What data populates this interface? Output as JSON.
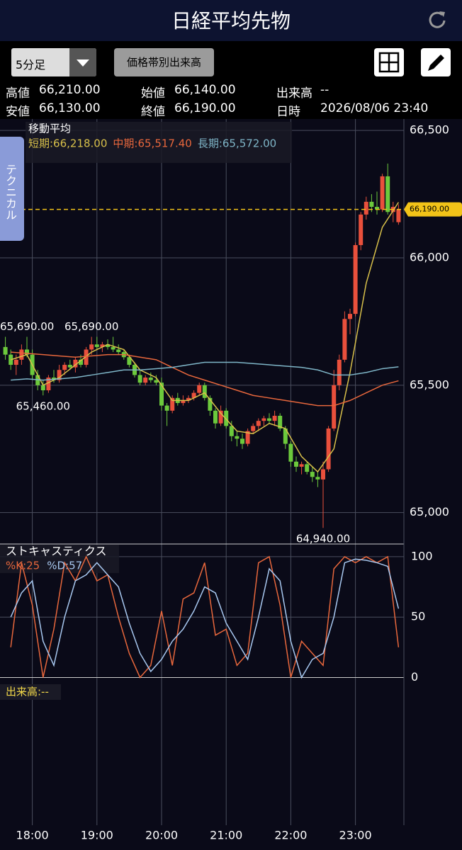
{
  "header": {
    "title": "日経平均先物"
  },
  "toolbar": {
    "interval": "5分足",
    "volume_profile": "価格帯別出来高"
  },
  "info": [
    [
      "高値",
      "66,210.00"
    ],
    [
      "始値",
      "66,140.00"
    ],
    [
      "出来高",
      "--"
    ],
    [
      "安値",
      "66,130.00"
    ],
    [
      "終値",
      "66,190.00"
    ],
    [
      "日時",
      "2026/08/06 23:40"
    ]
  ],
  "side_tab": "テクニカル",
  "chart_data": [
    {
      "type": "candlestick",
      "title": "移動平均",
      "up_color": "#e9503c",
      "down_color": "#6cc93c",
      "xlim": [
        "17:30",
        "23:45"
      ],
      "xticks": [
        "18:00",
        "19:00",
        "20:00",
        "21:00",
        "22:00",
        "23:00"
      ],
      "ylim": [
        64885,
        66545
      ],
      "yticks": [
        {
          "value": 65000,
          "label": "65,000"
        },
        {
          "value": 65500,
          "label": "65,500"
        },
        {
          "value": 66000,
          "label": "66,000"
        },
        {
          "value": 66500,
          "label": "66,500"
        }
      ],
      "grid": true,
      "x": [
        "17:35",
        "17:40",
        "17:45",
        "17:50",
        "17:55",
        "18:00",
        "18:05",
        "18:10",
        "18:15",
        "18:20",
        "18:25",
        "18:30",
        "18:35",
        "18:40",
        "18:45",
        "18:50",
        "18:55",
        "19:00",
        "19:05",
        "19:10",
        "19:15",
        "19:20",
        "19:25",
        "19:30",
        "19:35",
        "19:40",
        "19:45",
        "19:50",
        "19:55",
        "20:00",
        "20:05",
        "20:10",
        "20:15",
        "20:20",
        "20:25",
        "20:30",
        "20:35",
        "20:40",
        "20:45",
        "20:50",
        "20:55",
        "21:00",
        "21:05",
        "21:10",
        "21:15",
        "21:20",
        "21:25",
        "21:30",
        "21:35",
        "21:40",
        "21:45",
        "21:50",
        "21:55",
        "22:00",
        "22:05",
        "22:10",
        "22:15",
        "22:20",
        "22:25",
        "22:30",
        "22:35",
        "22:40",
        "22:45",
        "22:50",
        "22:55",
        "23:00",
        "23:05",
        "23:10",
        "23:15",
        "23:20",
        "23:25",
        "23:30",
        "23:35",
        "23:40"
      ],
      "ohlc": [
        [
          65650,
          65690,
          65600,
          65620
        ],
        [
          65620,
          65640,
          65560,
          65580
        ],
        [
          65580,
          65620,
          65540,
          65600
        ],
        [
          65600,
          65660,
          65580,
          65640
        ],
        [
          65640,
          65690,
          65610,
          65620
        ],
        [
          65620,
          65640,
          65520,
          65540
        ],
        [
          65540,
          65560,
          65480,
          65500
        ],
        [
          65500,
          65520,
          65460,
          65480
        ],
        [
          65480,
          65540,
          65470,
          65530
        ],
        [
          65530,
          65560,
          65510,
          65520
        ],
        [
          65520,
          65580,
          65510,
          65560
        ],
        [
          65560,
          65590,
          65540,
          65580
        ],
        [
          65580,
          65600,
          65560,
          65570
        ],
        [
          65570,
          65610,
          65550,
          65600
        ],
        [
          65600,
          65620,
          65570,
          65580
        ],
        [
          65580,
          65650,
          65570,
          65640
        ],
        [
          65640,
          65690,
          65620,
          65660
        ],
        [
          65660,
          65690,
          65640,
          65650
        ],
        [
          65650,
          65670,
          65630,
          65660
        ],
        [
          65660,
          65680,
          65640,
          65650
        ],
        [
          65650,
          65690,
          65630,
          65640
        ],
        [
          65640,
          65660,
          65620,
          65630
        ],
        [
          65630,
          65640,
          65600,
          65610
        ],
        [
          65610,
          65620,
          65570,
          65580
        ],
        [
          65580,
          65590,
          65530,
          65540
        ],
        [
          65540,
          65560,
          65500,
          65510
        ],
        [
          65510,
          65540,
          65500,
          65530
        ],
        [
          65530,
          65550,
          65510,
          65520
        ],
        [
          65520,
          65540,
          65500,
          65510
        ],
        [
          65510,
          65530,
          65400,
          65420
        ],
        [
          65420,
          65430,
          65340,
          65400
        ],
        [
          65400,
          65460,
          65390,
          65450
        ],
        [
          65450,
          65470,
          65420,
          65430
        ],
        [
          65430,
          65460,
          65420,
          65440
        ],
        [
          65440,
          65460,
          65430,
          65450
        ],
        [
          65450,
          65480,
          65440,
          65470
        ],
        [
          65470,
          65510,
          65460,
          65500
        ],
        [
          65500,
          65510,
          65440,
          65450
        ],
        [
          65450,
          65460,
          65380,
          65400
        ],
        [
          65400,
          65410,
          65330,
          65350
        ],
        [
          65350,
          65420,
          65340,
          65400
        ],
        [
          65400,
          65410,
          65330,
          65340
        ],
        [
          65340,
          65360,
          65280,
          65300
        ],
        [
          65300,
          65320,
          65260,
          65290
        ],
        [
          65290,
          65310,
          65250,
          65270
        ],
        [
          65270,
          65330,
          65260,
          65320
        ],
        [
          65320,
          65350,
          65310,
          65340
        ],
        [
          65340,
          65370,
          65320,
          65360
        ],
        [
          65360,
          65380,
          65340,
          65370
        ],
        [
          65370,
          65390,
          65350,
          65360
        ],
        [
          65360,
          65400,
          65340,
          65380
        ],
        [
          65380,
          65390,
          65320,
          65330
        ],
        [
          65330,
          65340,
          65250,
          65270
        ],
        [
          65270,
          65280,
          65180,
          65200
        ],
        [
          65200,
          65220,
          65160,
          65180
        ],
        [
          65180,
          65200,
          65150,
          65190
        ],
        [
          65190,
          65200,
          65150,
          65160
        ],
        [
          65160,
          65180,
          65120,
          65140
        ],
        [
          65140,
          65160,
          65100,
          65130
        ],
        [
          65130,
          65200,
          64940,
          65170
        ],
        [
          65170,
          65340,
          65160,
          65330
        ],
        [
          65330,
          65560,
          65320,
          65500
        ],
        [
          65500,
          65620,
          65480,
          65600
        ],
        [
          65600,
          65790,
          65590,
          65760
        ],
        [
          65760,
          65800,
          65700,
          65780
        ],
        [
          65780,
          66060,
          65770,
          66050
        ],
        [
          66050,
          66180,
          66030,
          66170
        ],
        [
          66170,
          66240,
          66150,
          66220
        ],
        [
          66220,
          66250,
          66180,
          66200
        ],
        [
          66200,
          66260,
          66170,
          66190
        ],
        [
          66190,
          66330,
          66180,
          66320
        ],
        [
          66320,
          66370,
          66170,
          66180
        ],
        [
          66180,
          66220,
          66140,
          66200
        ],
        [
          66140,
          66210,
          66130,
          66190
        ]
      ],
      "ma_x": [
        "17:40",
        "17:55",
        "18:10",
        "18:25",
        "18:40",
        "18:55",
        "19:10",
        "19:25",
        "19:40",
        "19:55",
        "20:10",
        "20:25",
        "20:40",
        "20:55",
        "21:10",
        "21:25",
        "21:40",
        "21:55",
        "22:10",
        "22:25",
        "22:40",
        "22:55",
        "23:10",
        "23:25",
        "23:40"
      ],
      "overlays": [
        {
          "name": "短期:66,218.00",
          "color": "#d8c04a",
          "values": [
            65600,
            65620,
            65500,
            65530,
            65580,
            65630,
            65660,
            65640,
            65560,
            65530,
            65440,
            65440,
            65470,
            65390,
            65320,
            65310,
            65350,
            65330,
            65220,
            65160,
            65250,
            65550,
            65900,
            66120,
            66218
          ]
        },
        {
          "name": "中期:65,517.40",
          "color": "#e8673c",
          "values": [
            65630,
            65625,
            65620,
            65615,
            65610,
            65615,
            65620,
            65620,
            65610,
            65600,
            65570,
            65540,
            65520,
            65500,
            65480,
            65460,
            65450,
            65440,
            65430,
            65420,
            65420,
            65440,
            65470,
            65500,
            65517.4
          ]
        },
        {
          "name": "長期:65,572.00",
          "color": "#7fb6c8",
          "values": [
            65520,
            65525,
            65520,
            65525,
            65530,
            65540,
            65550,
            65560,
            65560,
            65565,
            65570,
            65580,
            65590,
            65590,
            65590,
            65585,
            65580,
            65575,
            65570,
            65560,
            65540,
            65540,
            65550,
            65565,
            65572
          ]
        }
      ],
      "annotations": [
        {
          "x": "17:35",
          "value": 65690,
          "label": "65,690.00"
        },
        {
          "x": "18:55",
          "value": 65690,
          "label": "65,690.00"
        },
        {
          "x": "18:10",
          "value": 65460,
          "label": "65,460.00"
        },
        {
          "x": "22:30",
          "value": 64940,
          "label": "64,940.00"
        }
      ],
      "last_price": {
        "value": 66190,
        "label": "66,190.00",
        "color": "#f2c318"
      }
    },
    {
      "type": "line",
      "title": "ストキャスティクス",
      "ylim": [
        -5,
        110.5
      ],
      "yticks": [
        0,
        50,
        100
      ],
      "grid": true,
      "x": [
        "17:40",
        "17:50",
        "18:00",
        "18:10",
        "18:20",
        "18:30",
        "18:40",
        "18:50",
        "19:00",
        "19:10",
        "19:20",
        "19:30",
        "19:40",
        "19:50",
        "20:00",
        "20:10",
        "20:20",
        "20:30",
        "20:40",
        "20:50",
        "21:00",
        "21:10",
        "21:20",
        "21:30",
        "21:40",
        "21:50",
        "22:00",
        "22:10",
        "22:20",
        "22:30",
        "22:40",
        "22:50",
        "23:00",
        "23:10",
        "23:20",
        "23:30",
        "23:40"
      ],
      "series": [
        {
          "name": "%K:25",
          "color": "#e8673c",
          "values": [
            25,
            95,
            60,
            0,
            40,
            95,
            80,
            100,
            80,
            85,
            50,
            20,
            0,
            10,
            55,
            10,
            65,
            70,
            95,
            35,
            40,
            10,
            20,
            95,
            100,
            60,
            0,
            30,
            20,
            10,
            90,
            100,
            95,
            100,
            95,
            100,
            25
          ]
        },
        {
          "name": "%D:57",
          "color": "#a8c8f0",
          "values": [
            50,
            70,
            80,
            30,
            10,
            50,
            80,
            85,
            95,
            85,
            75,
            45,
            20,
            5,
            15,
            30,
            40,
            55,
            75,
            70,
            45,
            30,
            15,
            50,
            90,
            80,
            30,
            0,
            15,
            20,
            50,
            95,
            98,
            97,
            95,
            92,
            57
          ]
        }
      ]
    },
    {
      "type": "bar",
      "title": "出来高:--"
    }
  ]
}
